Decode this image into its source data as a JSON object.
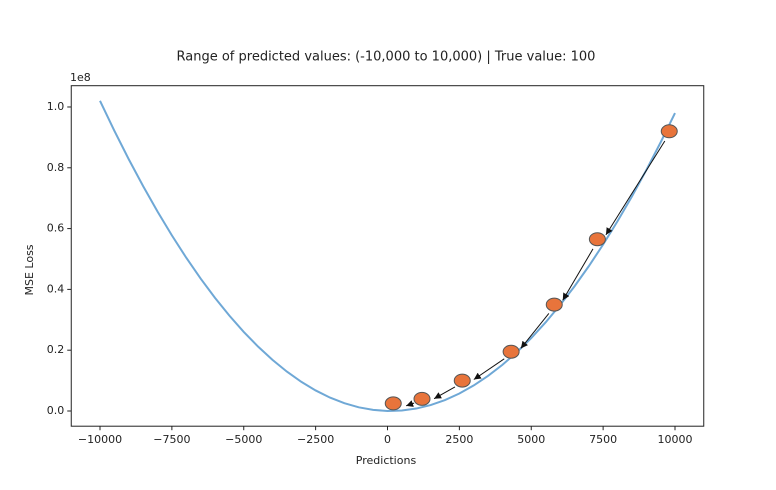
{
  "chart_data": {
    "type": "line",
    "title": "Range of predicted values: (-10,000 to 10,000) | True value: 100",
    "x_label": "Predictions",
    "y_label": "MSE Loss",
    "y_offset_label": "1e8",
    "xlim": [
      -11000,
      11000
    ],
    "ylim": [
      -0.05,
      1.07
    ],
    "xticks": [
      {
        "value": -10000,
        "label": "−10000"
      },
      {
        "value": -7500,
        "label": "−7500"
      },
      {
        "value": -5000,
        "label": "−5000"
      },
      {
        "value": -2500,
        "label": "−2500"
      },
      0,
      2500,
      5000,
      7500,
      10000
    ],
    "yticks": [
      {
        "value": 0,
        "label": "0.0"
      },
      0.2,
      0.4,
      0.6,
      0.8,
      {
        "value": 1,
        "label": "1.0"
      }
    ],
    "series": [
      {
        "type": "line",
        "color": "#6fa8d6",
        "x": [
          -10000,
          -9500,
          -9000,
          -8500,
          -8000,
          -7500,
          -7000,
          -6500,
          -6000,
          -5500,
          -5000,
          -4500,
          -4000,
          -3500,
          -3000,
          -2500,
          -2000,
          -1500,
          -1000,
          -500,
          0,
          500,
          1000,
          1500,
          2000,
          2500,
          3000,
          3500,
          4000,
          4500,
          5000,
          5500,
          6000,
          6500,
          7000,
          7500,
          8000,
          8500,
          9000,
          9500,
          10000
        ],
        "values": [
          1.0201,
          0.9216,
          0.8281,
          0.7396,
          0.6561,
          0.5776,
          0.5041,
          0.4356,
          0.3721,
          0.3136,
          0.2601,
          0.2116,
          0.1681,
          0.1296,
          0.0961,
          0.0676,
          0.0441,
          0.0256,
          0.0121,
          0.0036,
          0.0001,
          0.0016,
          0.0081,
          0.0196,
          0.0361,
          0.0576,
          0.0841,
          0.1156,
          0.1521,
          0.1936,
          0.2401,
          0.2916,
          0.3481,
          0.4096,
          0.4761,
          0.5476,
          0.6241,
          0.7056,
          0.7921,
          0.8836,
          0.9801
        ]
      },
      {
        "type": "scatter",
        "color": "#e8743b",
        "x": [
          9800,
          7300,
          5800,
          4300,
          2600,
          1200,
          200
        ],
        "values": [
          0.92,
          0.565,
          0.35,
          0.195,
          0.1,
          0.04,
          0.025
        ]
      }
    ]
  }
}
